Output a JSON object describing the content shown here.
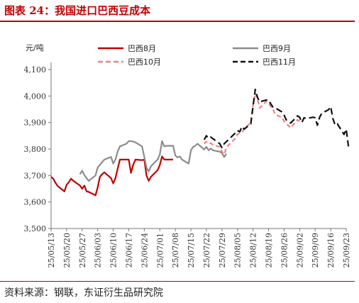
{
  "figure": {
    "title": "图表 24：我国进口巴西豆成本",
    "source": "资料来源：钢联，东证衍生品研究院"
  },
  "colors": {
    "s8": "#c00000",
    "s9": "#8c8c8c",
    "s10": "#f08080",
    "s11": "#111111",
    "title": "#c00000"
  },
  "chart_data": {
    "type": "line",
    "ylabel": "元/吨",
    "ylim": [
      3500,
      4100
    ],
    "yticks": [
      "3,500",
      "3,600",
      "3,700",
      "3,800",
      "3,900",
      "4,000",
      "4,100"
    ],
    "ytick_values": [
      3500,
      3600,
      3700,
      3800,
      3900,
      4000,
      4100
    ],
    "xlim": [
      "2025-05-13",
      "2025-09-23"
    ],
    "xticks": [
      "25/05/13",
      "25/05/20",
      "25/05/27",
      "25/06/03",
      "25/06/10",
      "25/06/17",
      "25/06/24",
      "25/07/01",
      "25/07/08",
      "25/07/15",
      "25/07/22",
      "25/07/29",
      "25/08/05",
      "25/08/12",
      "25/08/19",
      "25/08/26",
      "25/09/02",
      "25/09/09",
      "25/09/16",
      "25/09/23"
    ],
    "grid": false,
    "legend_position": "top",
    "series": [
      {
        "name": "巴西8月",
        "style": "solid",
        "points": [
          [
            "2025-05-13",
            3695
          ],
          [
            "2025-05-14",
            3688
          ],
          [
            "2025-05-15",
            3672
          ],
          [
            "2025-05-16",
            3660
          ],
          [
            "2025-05-19",
            3640
          ],
          [
            "2025-05-20",
            3665
          ],
          [
            "2025-05-21",
            3675
          ],
          [
            "2025-05-22",
            3688
          ],
          [
            "2025-05-23",
            3680
          ],
          [
            "2025-05-26",
            3662
          ],
          [
            "2025-05-27",
            3650
          ],
          [
            "2025-05-28",
            3662
          ],
          [
            "2025-05-29",
            3640
          ],
          [
            "2025-05-30",
            3638
          ],
          [
            "2025-06-02",
            3625
          ],
          [
            "2025-06-03",
            3655
          ],
          [
            "2025-06-04",
            3695
          ],
          [
            "2025-06-05",
            3705
          ],
          [
            "2025-06-06",
            3712
          ],
          [
            "2025-06-09",
            3690
          ],
          [
            "2025-06-10",
            3670
          ],
          [
            "2025-06-11",
            3690
          ],
          [
            "2025-06-12",
            3725
          ],
          [
            "2025-06-13",
            3760
          ],
          [
            "2025-06-16",
            3760
          ],
          [
            "2025-06-17",
            3760
          ],
          [
            "2025-06-18",
            3710
          ],
          [
            "2025-06-19",
            3740
          ],
          [
            "2025-06-20",
            3760
          ],
          [
            "2025-06-23",
            3758
          ],
          [
            "2025-06-24",
            3760
          ],
          [
            "2025-06-25",
            3700
          ],
          [
            "2025-06-26",
            3680
          ],
          [
            "2025-06-27",
            3695
          ],
          [
            "2025-06-30",
            3720
          ],
          [
            "2025-07-01",
            3740
          ],
          [
            "2025-07-02",
            3772
          ],
          [
            "2025-07-03",
            3760
          ],
          [
            "2025-07-04",
            3760
          ],
          [
            "2025-07-07",
            3760
          ]
        ]
      },
      {
        "name": "巴西9月",
        "style": "solid",
        "points": [
          [
            "2025-05-26",
            3705
          ],
          [
            "2025-05-27",
            3718
          ],
          [
            "2025-05-28",
            3702
          ],
          [
            "2025-05-29",
            3690
          ],
          [
            "2025-05-30",
            3680
          ],
          [
            "2025-06-02",
            3700
          ],
          [
            "2025-06-03",
            3730
          ],
          [
            "2025-06-04",
            3740
          ],
          [
            "2025-06-05",
            3750
          ],
          [
            "2025-06-06",
            3760
          ],
          [
            "2025-06-09",
            3770
          ],
          [
            "2025-06-10",
            3745
          ],
          [
            "2025-06-11",
            3760
          ],
          [
            "2025-06-12",
            3790
          ],
          [
            "2025-06-13",
            3810
          ],
          [
            "2025-06-16",
            3820
          ],
          [
            "2025-06-17",
            3830
          ],
          [
            "2025-06-18",
            3830
          ],
          [
            "2025-06-19",
            3828
          ],
          [
            "2025-06-20",
            3825
          ],
          [
            "2025-06-23",
            3810
          ],
          [
            "2025-06-24",
            3770
          ],
          [
            "2025-06-25",
            3730
          ],
          [
            "2025-06-26",
            3715
          ],
          [
            "2025-06-27",
            3735
          ],
          [
            "2025-06-30",
            3760
          ],
          [
            "2025-07-01",
            3780
          ],
          [
            "2025-07-02",
            3830
          ],
          [
            "2025-07-03",
            3810
          ],
          [
            "2025-07-04",
            3812
          ],
          [
            "2025-07-07",
            3812
          ],
          [
            "2025-07-08",
            3775
          ],
          [
            "2025-07-09",
            3768
          ],
          [
            "2025-07-10",
            3772
          ],
          [
            "2025-07-11",
            3760
          ],
          [
            "2025-07-14",
            3745
          ],
          [
            "2025-07-15",
            3795
          ],
          [
            "2025-07-16",
            3808
          ],
          [
            "2025-07-17",
            3812
          ],
          [
            "2025-07-18",
            3820
          ],
          [
            "2025-07-21",
            3798
          ],
          [
            "2025-07-22",
            3808
          ],
          [
            "2025-07-23",
            3795
          ],
          [
            "2025-07-24",
            3802
          ],
          [
            "2025-07-25",
            3795
          ],
          [
            "2025-07-28",
            3790
          ],
          [
            "2025-07-29",
            3785
          ],
          [
            "2025-07-30",
            3770
          ],
          [
            "2025-07-31",
            3782
          ]
        ]
      },
      {
        "name": "巴西10月",
        "style": "dashed",
        "points": [
          [
            "2025-07-21",
            3820
          ],
          [
            "2025-07-22",
            3828
          ],
          [
            "2025-07-23",
            3820
          ],
          [
            "2025-07-24",
            3822
          ],
          [
            "2025-07-25",
            3815
          ],
          [
            "2025-07-28",
            3808
          ],
          [
            "2025-07-29",
            3790
          ],
          [
            "2025-07-30",
            3780
          ],
          [
            "2025-07-31",
            3805
          ],
          [
            "2025-08-01",
            3815
          ],
          [
            "2025-08-04",
            3840
          ],
          [
            "2025-08-05",
            3856
          ],
          [
            "2025-08-06",
            3860
          ],
          [
            "2025-08-07",
            3863
          ],
          [
            "2025-08-08",
            3875
          ],
          [
            "2025-08-11",
            3900
          ],
          [
            "2025-08-12",
            3965
          ],
          [
            "2025-08-13",
            4010
          ],
          [
            "2025-08-14",
            3990
          ],
          [
            "2025-08-15",
            3955
          ],
          [
            "2025-08-18",
            3980
          ],
          [
            "2025-08-19",
            3975
          ],
          [
            "2025-08-20",
            3960
          ],
          [
            "2025-08-21",
            3950
          ],
          [
            "2025-08-22",
            3930
          ],
          [
            "2025-08-25",
            3920
          ],
          [
            "2025-08-26",
            3905
          ],
          [
            "2025-08-27",
            3895
          ],
          [
            "2025-08-28",
            3888
          ],
          [
            "2025-08-29",
            3880
          ],
          [
            "2025-09-01",
            3910
          ],
          [
            "2025-09-02",
            3905
          ]
        ]
      },
      {
        "name": "巴西11月",
        "style": "dashed",
        "points": [
          [
            "2025-07-21",
            3835
          ],
          [
            "2025-07-22",
            3850
          ],
          [
            "2025-07-23",
            3840
          ],
          [
            "2025-07-24",
            3845
          ],
          [
            "2025-07-28",
            3820
          ],
          [
            "2025-07-29",
            3805
          ],
          [
            "2025-07-30",
            3820
          ],
          [
            "2025-08-04",
            3860
          ],
          [
            "2025-08-05",
            3870
          ],
          [
            "2025-08-06",
            3865
          ],
          [
            "2025-08-07",
            3885
          ],
          [
            "2025-08-08",
            3875
          ],
          [
            "2025-08-11",
            3895
          ],
          [
            "2025-08-12",
            3960
          ],
          [
            "2025-08-13",
            4025
          ],
          [
            "2025-08-14",
            3995
          ],
          [
            "2025-08-15",
            3978
          ],
          [
            "2025-08-18",
            3985
          ],
          [
            "2025-08-19",
            3985
          ],
          [
            "2025-08-20",
            3970
          ],
          [
            "2025-08-21",
            3958
          ],
          [
            "2025-08-22",
            3955
          ],
          [
            "2025-08-25",
            3940
          ],
          [
            "2025-08-26",
            3928
          ],
          [
            "2025-08-27",
            3910
          ],
          [
            "2025-08-28",
            3902
          ],
          [
            "2025-08-29",
            3898
          ],
          [
            "2025-09-01",
            3925
          ],
          [
            "2025-09-02",
            3920
          ],
          [
            "2025-09-03",
            3900
          ],
          [
            "2025-09-04",
            3918
          ],
          [
            "2025-09-05",
            3915
          ],
          [
            "2025-09-08",
            3920
          ],
          [
            "2025-09-09",
            3918
          ],
          [
            "2025-09-10",
            3890
          ],
          [
            "2025-09-11",
            3920
          ],
          [
            "2025-09-12",
            3935
          ],
          [
            "2025-09-15",
            3948
          ],
          [
            "2025-09-16",
            3960
          ],
          [
            "2025-09-17",
            3915
          ],
          [
            "2025-09-18",
            3890
          ],
          [
            "2025-09-19",
            3895
          ],
          [
            "2025-09-22",
            3855
          ],
          [
            "2025-09-23",
            3875
          ],
          [
            "2025-09-24",
            3810
          ]
        ]
      }
    ]
  }
}
